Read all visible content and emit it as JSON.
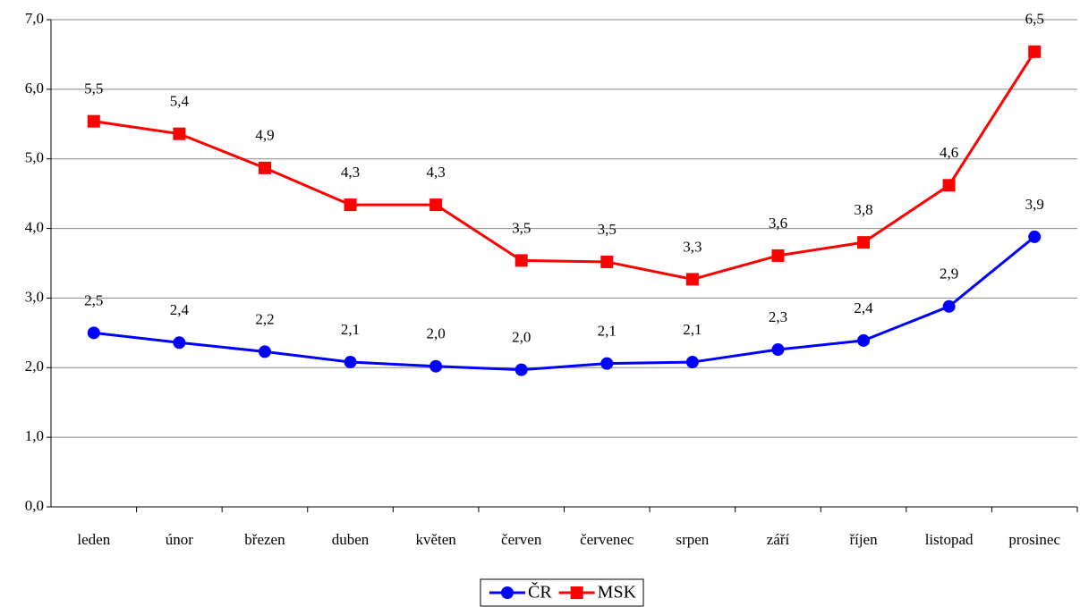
{
  "chart_data": {
    "type": "line",
    "categories": [
      "leden",
      "únor",
      "březen",
      "duben",
      "květen",
      "červen",
      "červenec",
      "srpen",
      "září",
      "říjen",
      "listopad",
      "prosinec"
    ],
    "series": [
      {
        "name": "ČR",
        "color": "#0000ff",
        "marker": "circle",
        "values": [
          2.5,
          2.36,
          2.23,
          2.08,
          2.02,
          1.97,
          2.06,
          2.08,
          2.26,
          2.39,
          2.88,
          3.88
        ],
        "value_labels": [
          "2,5",
          "2,4",
          "2,2",
          "2,1",
          "2,0",
          "2,0",
          "2,1",
          "2,1",
          "2,3",
          "2,4",
          "2,9",
          "3,9"
        ]
      },
      {
        "name": "MSK",
        "color": "#ff0000",
        "marker": "square",
        "values": [
          5.54,
          5.36,
          4.87,
          4.34,
          4.34,
          3.54,
          3.52,
          3.27,
          3.61,
          3.8,
          4.62,
          6.54
        ],
        "value_labels": [
          "5,5",
          "5,4",
          "4,9",
          "4,3",
          "4,3",
          "3,5",
          "3,5",
          "3,3",
          "3,6",
          "3,8",
          "4,6",
          "6,5"
        ]
      }
    ],
    "ylim": [
      0,
      7
    ],
    "yticks": [
      {
        "value": 0,
        "label": "0,0"
      },
      {
        "value": 1,
        "label": "1,0"
      },
      {
        "value": 2,
        "label": "2,0"
      },
      {
        "value": 3,
        "label": "3,0"
      },
      {
        "value": 4,
        "label": "4,0"
      },
      {
        "value": 5,
        "label": "5,0"
      },
      {
        "value": 6,
        "label": "6,0"
      },
      {
        "value": 7,
        "label": "7,0"
      }
    ],
    "grid": true,
    "legend": "bottom"
  }
}
